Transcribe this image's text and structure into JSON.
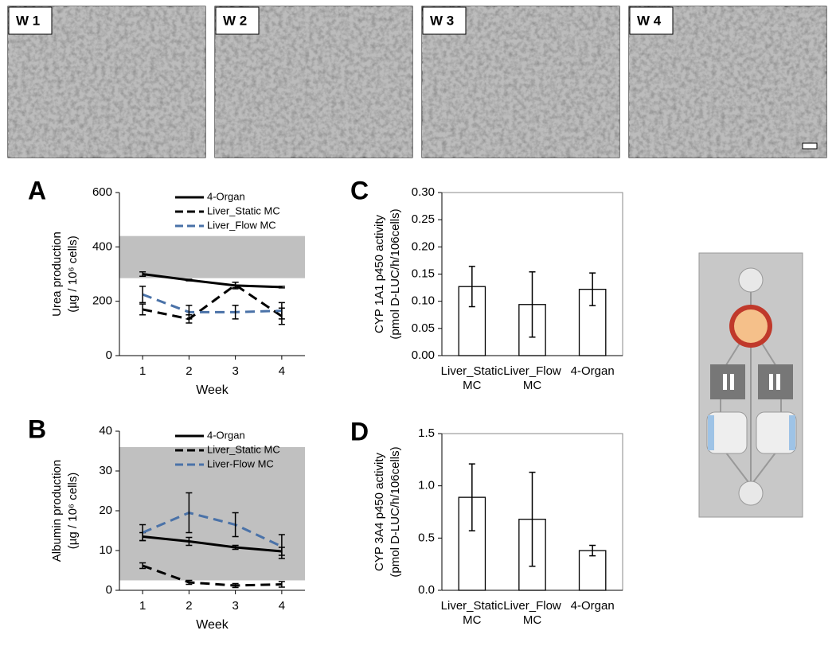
{
  "panels": [
    {
      "label": "W 1"
    },
    {
      "label": "W 2"
    },
    {
      "label": "W 3"
    },
    {
      "label": "W 4"
    }
  ],
  "chart_data": [
    {
      "type": "line",
      "label": "A",
      "ylabel": [
        "Urea production",
        "(µg / 10⁶ cells)"
      ],
      "xlabel": "Week",
      "categories": [
        "1",
        "2",
        "3",
        "4"
      ],
      "ylim": [
        0,
        600
      ],
      "yticks": [
        0,
        200,
        400,
        600
      ],
      "reference_range": [
        285,
        440
      ],
      "series": [
        {
          "name": "4-Organ",
          "color": "#000000",
          "dash": false,
          "values": [
            300,
            278,
            258,
            252
          ],
          "errors": [
            8,
            3,
            12,
            3
          ]
        },
        {
          "name": "Liver_Static MC",
          "color": "#000000",
          "dash": true,
          "values": [
            170,
            135,
            260,
            145
          ],
          "errors": [
            20,
            15,
            10,
            30
          ]
        },
        {
          "name": "Liver_Flow MC",
          "color": "#4a72a8",
          "dash": true,
          "values": [
            225,
            160,
            160,
            165
          ],
          "errors": [
            30,
            25,
            25,
            30
          ]
        }
      ]
    },
    {
      "type": "line",
      "label": "B",
      "ylabel": [
        "Albumin production",
        "(µg / 10⁶ cells)"
      ],
      "xlabel": "Week",
      "categories": [
        "1",
        "2",
        "3",
        "4"
      ],
      "ylim": [
        0,
        40
      ],
      "yticks": [
        0,
        10,
        20,
        30,
        40
      ],
      "reference_range": [
        2.5,
        36
      ],
      "series": [
        {
          "name": "4-Organ",
          "color": "#000000",
          "dash": false,
          "values": [
            13.5,
            12.3,
            10.8,
            9.8
          ],
          "errors": [
            1,
            1,
            0.5,
            1
          ]
        },
        {
          "name": "Liver_Static MC",
          "color": "#000000",
          "dash": true,
          "values": [
            6.2,
            2.0,
            1.2,
            1.5
          ],
          "errors": [
            0.7,
            0.5,
            0.5,
            0.7
          ]
        },
        {
          "name": "Liver-Flow MC",
          "color": "#4a72a8",
          "dash": true,
          "values": [
            14.5,
            19.5,
            16.5,
            11
          ],
          "errors": [
            2,
            5,
            3,
            3
          ]
        }
      ]
    },
    {
      "type": "bar",
      "label": "C",
      "ylabel": [
        "CYP 1A1 p450 activity",
        "(pmol D-LUC/h/106cells)"
      ],
      "categories": [
        "Liver_Static MC",
        "Liver_Flow MC",
        "4-Organ"
      ],
      "color": "#ffffff",
      "values": [
        0.127,
        0.094,
        0.122
      ],
      "errors": [
        0.037,
        0.06,
        0.03
      ],
      "ylim": [
        0,
        0.3
      ],
      "yticks": [
        {
          "value": 0,
          "label": "0.00"
        },
        {
          "value": 0.05,
          "label": "0.05"
        },
        {
          "value": 0.1,
          "label": "0.10"
        },
        {
          "value": 0.15,
          "label": "0.15"
        },
        {
          "value": 0.2,
          "label": "0.20"
        },
        {
          "value": 0.25,
          "label": "0.25"
        },
        {
          "value": 0.3,
          "label": "0.30"
        }
      ]
    },
    {
      "type": "bar",
      "label": "D",
      "ylabel": [
        "CYP 3A4 p450 activity",
        "(pmol D-LUC/h/106cells)"
      ],
      "categories": [
        "Liver_Static MC",
        "Liver_Flow MC",
        "4-Organ"
      ],
      "color": "#ffffff",
      "values": [
        0.89,
        0.68,
        0.38
      ],
      "errors": [
        0.32,
        0.45,
        0.05
      ],
      "ylim": [
        0,
        1.5
      ],
      "yticks": [
        {
          "value": 0,
          "label": "0.0"
        },
        {
          "value": 0.5,
          "label": "0.5"
        },
        {
          "value": 1,
          "label": "1.0"
        },
        {
          "value": 1.5,
          "label": "1.5"
        }
      ]
    }
  ]
}
